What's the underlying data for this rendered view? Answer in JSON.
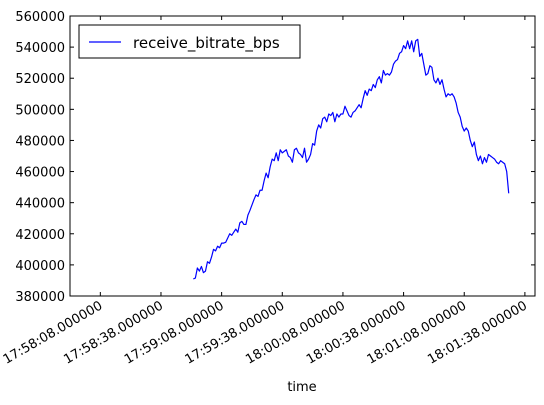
{
  "chart_data": {
    "type": "line",
    "title": "",
    "xlabel": "time",
    "ylabel": "",
    "ylim": [
      380000,
      560000
    ],
    "yticks": [
      380000,
      400000,
      420000,
      440000,
      460000,
      480000,
      500000,
      520000,
      540000,
      560000
    ],
    "ytick_labels": [
      "380000",
      "400000",
      "420000",
      "440000",
      "460000",
      "480000",
      "500000",
      "520000",
      "540000",
      "560000"
    ],
    "xlim": [
      "17:57:53",
      "18:01:43"
    ],
    "xticks": [
      "17:58:08",
      "17:58:38",
      "17:59:08",
      "17:59:38",
      "18:00:08",
      "18:00:38",
      "18:01:08",
      "18:01:38"
    ],
    "xtick_labels": [
      "17:58:08.000000",
      "17:58:38.000000",
      "17:59:08.000000",
      "17:59:38.000000",
      "18:00:08.000000",
      "18:00:38.000000",
      "18:01:08.000000",
      "18:01:38.000000"
    ],
    "legend": {
      "position": "top-left",
      "entries": [
        "receive_bitrate_bps"
      ]
    },
    "grid": false,
    "series": [
      {
        "name": "receive_bitrate_bps",
        "color": "#0000ff",
        "points": [
          [
            "17:58:54",
            391000
          ],
          [
            "17:58:55",
            391500
          ],
          [
            "17:58:56",
            398000
          ],
          [
            "17:58:57",
            396000
          ],
          [
            "17:58:58",
            399000
          ],
          [
            "17:58:59",
            395000
          ],
          [
            "17:59:00",
            396000
          ],
          [
            "17:59:01",
            402000
          ],
          [
            "17:59:02",
            401000
          ],
          [
            "17:59:03",
            405000
          ],
          [
            "17:59:04",
            410000
          ],
          [
            "17:59:05",
            409000
          ],
          [
            "17:59:06",
            412000
          ],
          [
            "17:59:07",
            411000
          ],
          [
            "17:59:08",
            414000
          ],
          [
            "17:59:09",
            414000
          ],
          [
            "17:59:10",
            414500
          ],
          [
            "17:59:12",
            420000
          ],
          [
            "17:59:13",
            419000
          ],
          [
            "17:59:14",
            421000
          ],
          [
            "17:59:15",
            423000
          ],
          [
            "17:59:16",
            421000
          ],
          [
            "17:59:17",
            427000
          ],
          [
            "17:59:18",
            428000
          ],
          [
            "17:59:19",
            426000
          ],
          [
            "17:59:20",
            426000
          ],
          [
            "17:59:21",
            432000
          ],
          [
            "17:59:22",
            435000
          ],
          [
            "17:59:24",
            442000
          ],
          [
            "17:59:25",
            445000
          ],
          [
            "17:59:26",
            444000
          ],
          [
            "17:59:27",
            448000
          ],
          [
            "17:59:28",
            448000
          ],
          [
            "17:59:29",
            454000
          ],
          [
            "17:59:30",
            459000
          ],
          [
            "17:59:31",
            456000
          ],
          [
            "17:59:32",
            463000
          ],
          [
            "17:59:33",
            468000
          ],
          [
            "17:59:34",
            467000
          ],
          [
            "17:59:35",
            472000
          ],
          [
            "17:59:36",
            467000
          ],
          [
            "17:59:37",
            474000
          ],
          [
            "17:59:38",
            472000
          ],
          [
            "17:59:40",
            474000
          ],
          [
            "17:59:41",
            470000
          ],
          [
            "17:59:42",
            469000
          ],
          [
            "17:59:43",
            466000
          ],
          [
            "17:59:44",
            474000
          ],
          [
            "17:59:45",
            475000
          ],
          [
            "17:59:46",
            472000
          ],
          [
            "17:59:47",
            471000
          ],
          [
            "17:59:48",
            469000
          ],
          [
            "17:59:49",
            475000
          ],
          [
            "17:59:50",
            466000
          ],
          [
            "17:59:51",
            468000
          ],
          [
            "17:59:52",
            471000
          ],
          [
            "17:59:53",
            478000
          ],
          [
            "17:59:54",
            477000
          ],
          [
            "17:59:55",
            486000
          ],
          [
            "17:59:56",
            490000
          ],
          [
            "17:59:57",
            488000
          ],
          [
            "17:59:58",
            494000
          ],
          [
            "17:59:59",
            495000
          ],
          [
            "18:00:00",
            492000
          ],
          [
            "18:00:01",
            497000
          ],
          [
            "18:00:02",
            496000
          ],
          [
            "18:00:03",
            498000
          ],
          [
            "18:00:04",
            492000
          ],
          [
            "18:00:05",
            497000
          ],
          [
            "18:00:06",
            495000
          ],
          [
            "18:00:07",
            497000
          ],
          [
            "18:00:08",
            497000
          ],
          [
            "18:00:09",
            502000
          ],
          [
            "18:00:10",
            499000
          ],
          [
            "18:00:11",
            496000
          ],
          [
            "18:00:12",
            495000
          ],
          [
            "18:00:13",
            498000
          ],
          [
            "18:00:14",
            499000
          ],
          [
            "18:00:15",
            501000
          ],
          [
            "18:00:16",
            503000
          ],
          [
            "18:00:17",
            501000
          ],
          [
            "18:00:18",
            507000
          ],
          [
            "18:00:19",
            512000
          ],
          [
            "18:00:20",
            509000
          ],
          [
            "18:00:21",
            513000
          ],
          [
            "18:00:22",
            512000
          ],
          [
            "18:00:23",
            516000
          ],
          [
            "18:00:24",
            514000
          ],
          [
            "18:00:25",
            519000
          ],
          [
            "18:00:26",
            521000
          ],
          [
            "18:00:27",
            517000
          ],
          [
            "18:00:28",
            525000
          ],
          [
            "18:00:29",
            522000
          ],
          [
            "18:00:30",
            523000
          ],
          [
            "18:00:31",
            522000
          ],
          [
            "18:00:32",
            524000
          ],
          [
            "18:00:33",
            529000
          ],
          [
            "18:00:34",
            531000
          ],
          [
            "18:00:35",
            532000
          ],
          [
            "18:00:36",
            536000
          ],
          [
            "18:00:37",
            537000
          ],
          [
            "18:00:38",
            541000
          ],
          [
            "18:00:39",
            539000
          ],
          [
            "18:00:40",
            544000
          ],
          [
            "18:00:41",
            539000
          ],
          [
            "18:00:42",
            544000
          ],
          [
            "18:00:43",
            537000
          ],
          [
            "18:00:44",
            544000
          ],
          [
            "18:00:45",
            545000
          ],
          [
            "18:00:46",
            534000
          ],
          [
            "18:00:47",
            536000
          ],
          [
            "18:00:48",
            529000
          ],
          [
            "18:00:49",
            522000
          ],
          [
            "18:00:50",
            523000
          ],
          [
            "18:00:51",
            528000
          ],
          [
            "18:00:52",
            527000
          ],
          [
            "18:00:53",
            519000
          ],
          [
            "18:00:54",
            517000
          ],
          [
            "18:00:55",
            520000
          ],
          [
            "18:00:56",
            516000
          ],
          [
            "18:00:57",
            519000
          ],
          [
            "18:00:58",
            513000
          ],
          [
            "18:00:59",
            508000
          ],
          [
            "18:01:00",
            510000
          ],
          [
            "18:01:01",
            509000
          ],
          [
            "18:01:02",
            510000
          ],
          [
            "18:01:03",
            508000
          ],
          [
            "18:01:04",
            504000
          ],
          [
            "18:01:05",
            498000
          ],
          [
            "18:01:06",
            495000
          ],
          [
            "18:01:07",
            489000
          ],
          [
            "18:01:08",
            486000
          ],
          [
            "18:01:09",
            488000
          ],
          [
            "18:01:10",
            486000
          ],
          [
            "18:01:11",
            480000
          ],
          [
            "18:01:12",
            476000
          ],
          [
            "18:01:13",
            479000
          ],
          [
            "18:01:14",
            471000
          ],
          [
            "18:01:15",
            467000
          ],
          [
            "18:01:16",
            470000
          ],
          [
            "18:01:17",
            465000
          ],
          [
            "18:01:18",
            469000
          ],
          [
            "18:01:19",
            466000
          ],
          [
            "18:01:20",
            471000
          ],
          [
            "18:01:21",
            470000
          ],
          [
            "18:01:22",
            469000
          ],
          [
            "18:01:23",
            468000
          ],
          [
            "18:01:24",
            466000
          ],
          [
            "18:01:25",
            465000
          ],
          [
            "18:01:26",
            467000
          ],
          [
            "18:01:27",
            466000
          ],
          [
            "18:01:28",
            465000
          ],
          [
            "18:01:29",
            460000
          ],
          [
            "18:01:30",
            446000
          ]
        ]
      }
    ]
  }
}
